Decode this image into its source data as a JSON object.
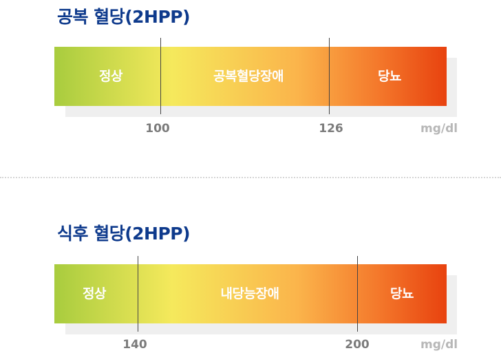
{
  "fasting": {
    "title": "공복 혈당(2HPP)",
    "segments": [
      "정상",
      "공복혈당장애",
      "당뇨"
    ],
    "ticks": [
      "100",
      "126"
    ],
    "unit": "mg/dl",
    "gradient": [
      "#a8cc3e",
      "#f5e95c",
      "#fbb44b",
      "#f47a2c",
      "#e8420f"
    ]
  },
  "postmeal": {
    "title": "식후 혈당(2HPP)",
    "segments": [
      "정상",
      "내당능장애",
      "당뇨"
    ],
    "ticks": [
      "140",
      "200"
    ],
    "unit": "mg/dl",
    "gradient": [
      "#a8cc3e",
      "#f5e95c",
      "#fbb44b",
      "#f47a2c",
      "#e8420f"
    ]
  }
}
